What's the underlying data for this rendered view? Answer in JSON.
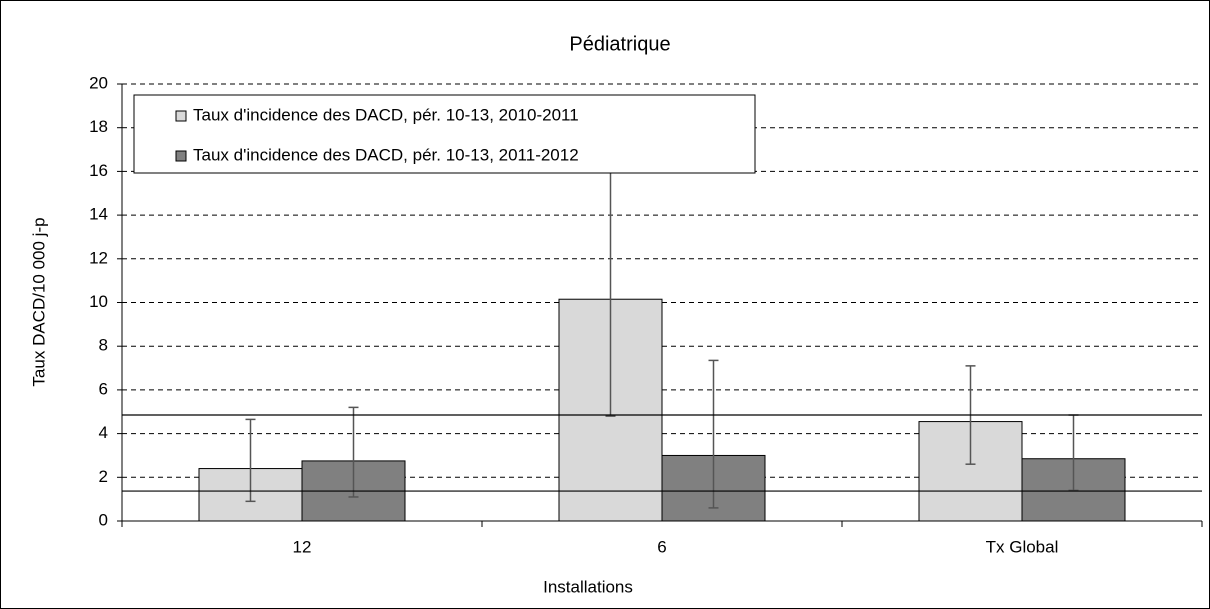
{
  "chart_data": {
    "type": "bar",
    "title": "Pédiatrique",
    "x_label": "Installations",
    "y_label": "Taux DACD/10 000 j-p",
    "categories": [
      "12",
      "6",
      "Tx Global"
    ],
    "series": [
      {
        "name": "Taux d'incidence des DACD, pér. 10-13, 2010-2011",
        "color": "#d9d9d9",
        "values": [
          2.4,
          10.15,
          4.55
        ],
        "ci_low": [
          0.9,
          4.8,
          2.6
        ],
        "ci_high": [
          4.65,
          16.1,
          7.1
        ]
      },
      {
        "name": "Taux d'incidence des DACD, pér. 10-13, 2011-2012",
        "color": "#808080",
        "values": [
          2.75,
          3.0,
          2.85
        ],
        "ci_low": [
          1.1,
          0.6,
          1.4
        ],
        "ci_high": [
          5.2,
          7.35,
          4.85
        ]
      }
    ],
    "reference_lines": [
      4.85,
      1.37
    ],
    "ylim": [
      0,
      20
    ],
    "yticks": [
      0,
      2,
      4,
      6,
      8,
      10,
      12,
      14,
      16,
      18,
      20
    ],
    "grid": true,
    "legend": "top-left"
  }
}
